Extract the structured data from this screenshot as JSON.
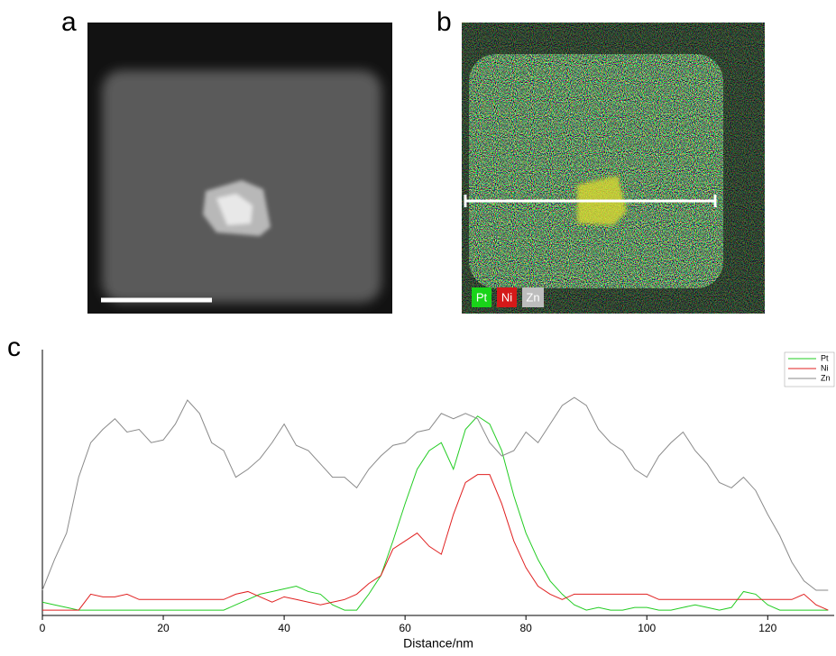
{
  "panel_labels": [
    "a",
    "b",
    "c"
  ],
  "eds_legend": [
    "Pt",
    "Ni",
    "Zn"
  ],
  "chart_data": {
    "type": "line",
    "x_label": "Distance/nm",
    "x": [
      0,
      2,
      4,
      6,
      8,
      10,
      12,
      14,
      16,
      18,
      20,
      22,
      24,
      26,
      28,
      30,
      32,
      34,
      36,
      38,
      40,
      42,
      44,
      46,
      48,
      50,
      52,
      54,
      56,
      58,
      60,
      62,
      64,
      66,
      68,
      70,
      72,
      74,
      76,
      78,
      80,
      82,
      84,
      86,
      88,
      90,
      92,
      94,
      96,
      98,
      100,
      102,
      104,
      106,
      108,
      110,
      112,
      114,
      116,
      118,
      120,
      122,
      124,
      126,
      128,
      130
    ],
    "series": [
      {
        "name": "Pt",
        "color": "#22cc22",
        "values": [
          5,
          4,
          3,
          2,
          2,
          2,
          2,
          2,
          2,
          2,
          2,
          2,
          2,
          2,
          2,
          2,
          4,
          6,
          8,
          9,
          10,
          11,
          9,
          8,
          4,
          2,
          2,
          8,
          15,
          28,
          42,
          55,
          62,
          65,
          55,
          70,
          75,
          72,
          62,
          45,
          31,
          21,
          13,
          8,
          4,
          2,
          3,
          2,
          2,
          3,
          3,
          2,
          2,
          3,
          4,
          3,
          2,
          3,
          9,
          8,
          4,
          2,
          2,
          2,
          2,
          2
        ]
      },
      {
        "name": "Ni",
        "color": "#e02020",
        "values": [
          2,
          2,
          2,
          2,
          8,
          7,
          7,
          8,
          6,
          6,
          6,
          6,
          6,
          6,
          6,
          6,
          8,
          9,
          7,
          5,
          7,
          6,
          5,
          4,
          5,
          6,
          8,
          12,
          15,
          25,
          28,
          31,
          26,
          23,
          38,
          50,
          53,
          53,
          42,
          28,
          18,
          11,
          8,
          6,
          8,
          8,
          8,
          8,
          8,
          8,
          8,
          6,
          6,
          6,
          6,
          6,
          6,
          6,
          6,
          6,
          6,
          6,
          6,
          8,
          4,
          2
        ]
      },
      {
        "name": "Zn",
        "color": "#8a8a8a",
        "values": [
          9.5,
          21,
          31,
          52,
          65,
          70,
          74,
          69,
          70,
          65,
          66,
          72,
          81,
          76,
          65,
          62,
          52,
          55,
          59,
          65,
          72,
          64,
          62,
          57,
          52,
          52,
          48,
          55,
          60,
          64,
          65,
          69,
          70,
          76,
          74,
          76,
          74,
          65,
          60,
          62,
          69,
          65,
          72,
          79,
          82,
          79,
          70,
          65,
          62,
          55,
          52,
          60,
          65,
          69,
          62,
          57,
          50,
          48,
          52,
          47,
          38,
          30,
          20,
          13,
          9.5,
          9.5
        ]
      }
    ],
    "xlim": [
      0,
      131
    ],
    "ylim": [
      0,
      100
    ],
    "xticks": [
      0,
      20,
      40,
      60,
      80,
      100,
      120
    ]
  }
}
